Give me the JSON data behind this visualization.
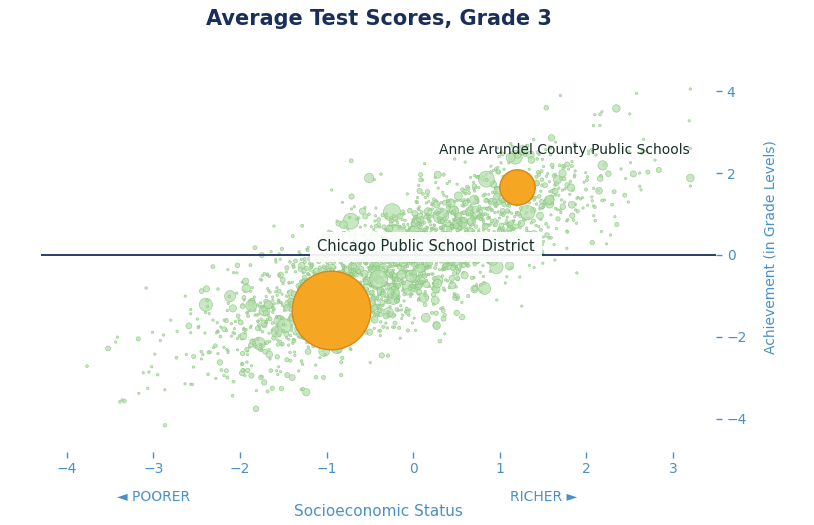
{
  "title": "Average Test Scores, Grade 3",
  "xlabel": "Socioeconomic Status",
  "ylabel": "Achievement (in Grade Levels)",
  "xlim": [
    -4.3,
    3.5
  ],
  "ylim": [
    -4.8,
    5.2
  ],
  "x_ticks": [
    -4,
    -3,
    -2,
    -1,
    0,
    1,
    2,
    3
  ],
  "y_ticks": [
    -4,
    -2,
    0,
    2,
    4
  ],
  "background_color": "#ffffff",
  "scatter_color": "#b8e0b0",
  "scatter_edge_color": "#85c47a",
  "highlight_color": "#f5a623",
  "highlight_edge_color": "#d4891a",
  "hline_color": "#1a2e5a",
  "title_color": "#1a2e5a",
  "axis_label_color": "#4a90c4",
  "tick_color": "#4a90c4",
  "annotation_color": "#1a2e2a",
  "poorer_label": "◄ POORER",
  "richer_label": "RICHER ►",
  "chicago_label": "Chicago Public School District",
  "anne_arundel_label": "Anne Arundel County Public Schools",
  "chicago_x": -0.95,
  "chicago_y": -1.35,
  "anne_arundel_x": 1.2,
  "anne_arundel_y": 1.65,
  "chicago_size": 3200,
  "anne_arundel_size": 650,
  "seed": 42,
  "n_points": 2500
}
